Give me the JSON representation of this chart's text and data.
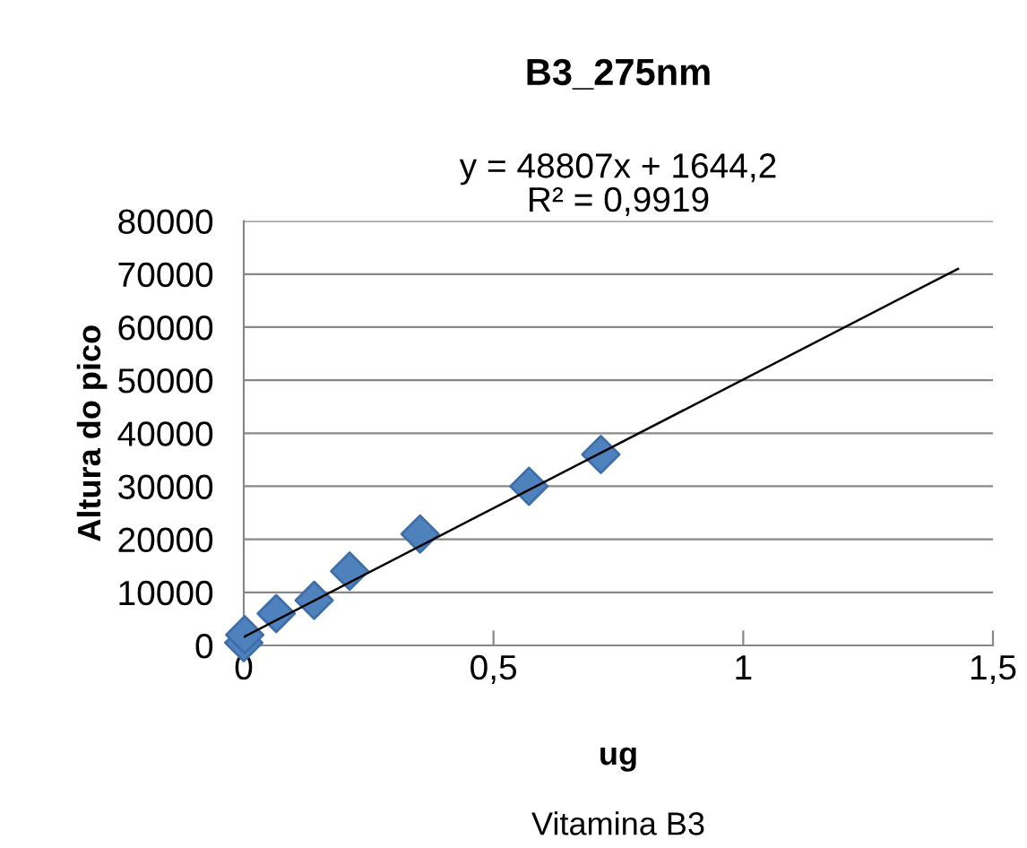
{
  "chart_data": {
    "type": "scatter",
    "title": "B3_275nm",
    "xlabel": "ug",
    "ylabel": "Altura do pico",
    "annotations": [
      "y = 48807x + 1644,2\nR² = 0,9919",
      "Vitamina B3"
    ],
    "series": [
      {
        "color": "#4f81bd",
        "marker": "diamond",
        "x": [
          0,
          0.002,
          0.065,
          0.141,
          0.212,
          0.353,
          0.571,
          0.715
        ],
        "values": [
          500,
          2000,
          6000,
          8500,
          14000,
          21000,
          30000,
          36000
        ]
      },
      {
        "type": "line",
        "color": "#000000",
        "marker": "none",
        "line_style": "solid",
        "x": [
          0,
          1.43
        ],
        "values": [
          1600,
          71000
        ]
      }
    ],
    "xlim": [
      0,
      1.5
    ],
    "xticks": [
      0,
      {
        "value": 0.5,
        "label": "0,5"
      },
      1,
      {
        "value": 1.5,
        "label": "1,5"
      }
    ],
    "ylim": [
      0,
      80000
    ],
    "yticks": [
      0,
      10000,
      20000,
      30000,
      40000,
      50000,
      60000,
      70000,
      80000
    ],
    "grid": "y",
    "legend": false
  }
}
